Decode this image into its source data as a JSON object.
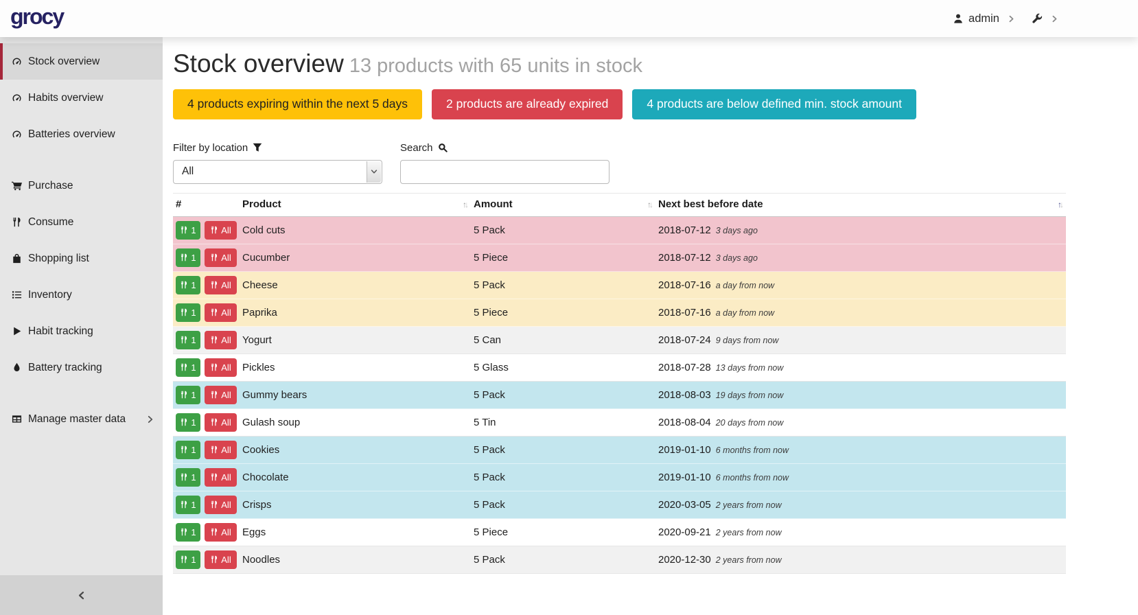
{
  "header": {
    "logo": "grocy",
    "user_label": "admin"
  },
  "sidebar": {
    "overview_items": [
      {
        "label": "Stock overview",
        "icon": "tachometer-icon",
        "active": true
      },
      {
        "label": "Habits overview",
        "icon": "tachometer-icon",
        "active": false
      },
      {
        "label": "Batteries overview",
        "icon": "tachometer-icon",
        "active": false
      }
    ],
    "action_items": [
      {
        "label": "Purchase",
        "icon": "cart-icon"
      },
      {
        "label": "Consume",
        "icon": "cutlery-icon"
      },
      {
        "label": "Shopping list",
        "icon": "bag-icon"
      },
      {
        "label": "Inventory",
        "icon": "list-icon"
      },
      {
        "label": "Habit tracking",
        "icon": "play-icon"
      },
      {
        "label": "Battery tracking",
        "icon": "tint-icon"
      }
    ],
    "manage_item": {
      "label": "Manage master data",
      "icon": "table-icon"
    }
  },
  "page": {
    "title": "Stock overview",
    "subtitle": "13 products with 65 units in stock",
    "badges": [
      {
        "label": "4 products expiring within the next 5 days",
        "bg": "#fec108",
        "fg": "#212121"
      },
      {
        "label": "2 products are already expired",
        "bg": "#d9434e",
        "fg": "#ffffff"
      },
      {
        "label": "4 products are below defined min. stock amount",
        "bg": "#1da9ba",
        "fg": "#ffffff"
      }
    ],
    "filter_label": "Filter by location",
    "filter_value": "All",
    "search_label": "Search",
    "search_value": "",
    "table": {
      "columns": [
        "#",
        "Product",
        "Amount",
        "Next best before date"
      ],
      "consume_one": "1",
      "consume_all": "All",
      "rows": [
        {
          "product": "Cold cuts",
          "amount": "5 Pack",
          "date": "2018-07-12",
          "relative": "3 days ago",
          "state": "expired"
        },
        {
          "product": "Cucumber",
          "amount": "5 Piece",
          "date": "2018-07-12",
          "relative": "3 days ago",
          "state": "expired"
        },
        {
          "product": "Cheese",
          "amount": "5 Pack",
          "date": "2018-07-16",
          "relative": "a day from now",
          "state": "expiring"
        },
        {
          "product": "Paprika",
          "amount": "5 Piece",
          "date": "2018-07-16",
          "relative": "a day from now",
          "state": "expiring"
        },
        {
          "product": "Yogurt",
          "amount": "5 Can",
          "date": "2018-07-24",
          "relative": "9 days from now",
          "state": "none"
        },
        {
          "product": "Pickles",
          "amount": "5 Glass",
          "date": "2018-07-28",
          "relative": "13 days from now",
          "state": "none"
        },
        {
          "product": "Gummy bears",
          "amount": "5 Pack",
          "date": "2018-08-03",
          "relative": "19 days from now",
          "state": "belowmin"
        },
        {
          "product": "Gulash soup",
          "amount": "5 Tin",
          "date": "2018-08-04",
          "relative": "20 days from now",
          "state": "none"
        },
        {
          "product": "Cookies",
          "amount": "5 Pack",
          "date": "2019-01-10",
          "relative": "6 months from now",
          "state": "belowmin"
        },
        {
          "product": "Chocolate",
          "amount": "5 Pack",
          "date": "2019-01-10",
          "relative": "6 months from now",
          "state": "belowmin"
        },
        {
          "product": "Crisps",
          "amount": "5 Pack",
          "date": "2020-03-05",
          "relative": "2 years from now",
          "state": "belowmin"
        },
        {
          "product": "Eggs",
          "amount": "5 Piece",
          "date": "2020-09-21",
          "relative": "2 years from now",
          "state": "none"
        },
        {
          "product": "Noodles",
          "amount": "5 Pack",
          "date": "2020-12-30",
          "relative": "2 years from now",
          "state": "none"
        }
      ]
    }
  },
  "colors": {
    "logo": "#262262",
    "active_nav_border": "#a5273a",
    "badge_warning": "#fec108",
    "badge_danger": "#d9434e",
    "badge_info": "#1da9ba",
    "row_expired": "#f2c4cd",
    "row_expiring": "#fbecc5",
    "row_below_min": "#c3e6ee",
    "consume_one_button": "#3da045",
    "consume_all_button": "#d9434e"
  }
}
